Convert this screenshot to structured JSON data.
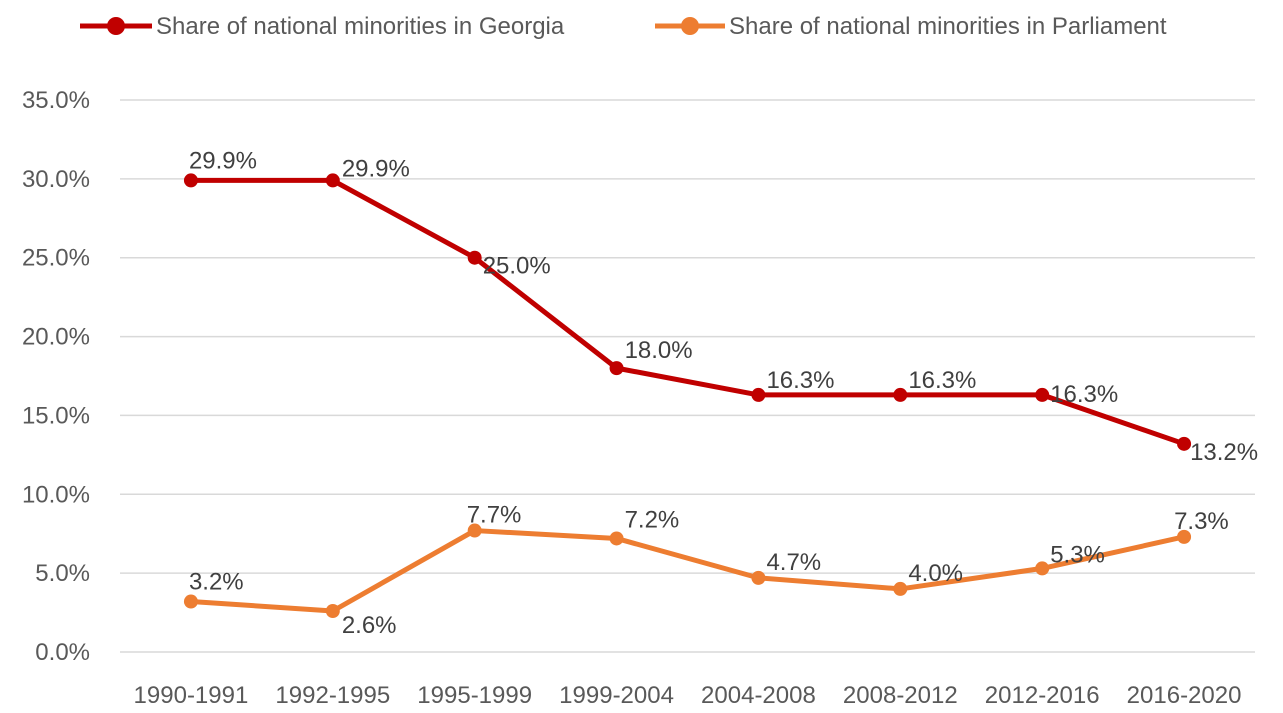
{
  "chart_data": {
    "type": "line",
    "title": "",
    "xlabel": "",
    "ylabel": "",
    "categories": [
      "1990-1991",
      "1992-1995",
      "1995-1999",
      "1999-2004",
      "2004-2008",
      "2008-2012",
      "2012-2016",
      "2016-2020"
    ],
    "ylim": [
      0,
      35
    ],
    "yticks": [
      "0.0%",
      "5.0%",
      "10.0%",
      "15.0%",
      "20.0%",
      "25.0%",
      "30.0%",
      "35.0%"
    ],
    "grid": true,
    "legend_position": "top",
    "series": [
      {
        "name": "Share of national minorities in Georgia",
        "color": "#c00000",
        "values": [
          29.9,
          29.9,
          25.0,
          18.0,
          16.3,
          16.3,
          16.3,
          13.2
        ],
        "labels": [
          "29.9%",
          "29.9%",
          "25.0%",
          "18.0%",
          "16.3%",
          "16.3%",
          "16.3%",
          "13.2%"
        ]
      },
      {
        "name": "Share of national minorities in Parliament",
        "color": "#ed7d31",
        "values": [
          3.2,
          2.6,
          7.7,
          7.2,
          4.7,
          4.0,
          5.3,
          7.3
        ],
        "labels": [
          "3.2%",
          "2.6%",
          "7.7%",
          "7.2%",
          "4.7%",
          "4.0%",
          "5.3%",
          "7.3%"
        ]
      }
    ]
  }
}
